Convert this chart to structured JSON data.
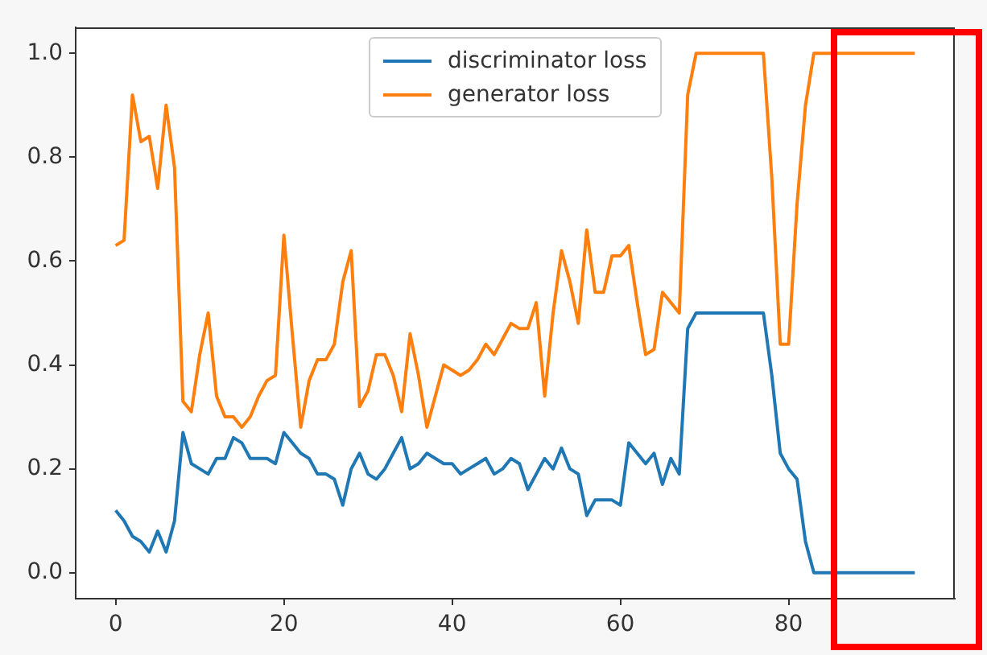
{
  "chart_data": {
    "type": "line",
    "x": [
      0,
      1,
      2,
      3,
      4,
      5,
      6,
      7,
      8,
      9,
      10,
      11,
      12,
      13,
      14,
      15,
      16,
      17,
      18,
      19,
      20,
      21,
      22,
      23,
      24,
      25,
      26,
      27,
      28,
      29,
      30,
      31,
      32,
      33,
      34,
      35,
      36,
      37,
      38,
      39,
      40,
      41,
      42,
      43,
      44,
      45,
      46,
      47,
      48,
      49,
      50,
      51,
      52,
      53,
      54,
      55,
      56,
      57,
      58,
      59,
      60,
      61,
      62,
      63,
      64,
      65,
      66,
      67,
      68,
      69,
      70,
      71,
      72,
      73,
      74,
      75,
      76,
      77,
      78,
      79,
      80,
      81,
      82,
      83,
      84,
      85,
      86,
      87,
      88,
      89,
      90,
      91,
      92,
      93,
      94,
      95
    ],
    "series": [
      {
        "name": "discriminator loss",
        "color": "#1f77b4",
        "values": [
          0.12,
          0.1,
          0.07,
          0.06,
          0.04,
          0.08,
          0.04,
          0.1,
          0.27,
          0.21,
          0.2,
          0.19,
          0.22,
          0.22,
          0.26,
          0.25,
          0.22,
          0.22,
          0.22,
          0.21,
          0.27,
          0.25,
          0.23,
          0.22,
          0.19,
          0.19,
          0.18,
          0.13,
          0.2,
          0.23,
          0.19,
          0.18,
          0.2,
          0.23,
          0.26,
          0.2,
          0.21,
          0.23,
          0.22,
          0.21,
          0.21,
          0.19,
          0.2,
          0.21,
          0.22,
          0.19,
          0.2,
          0.22,
          0.21,
          0.16,
          0.19,
          0.22,
          0.2,
          0.24,
          0.2,
          0.19,
          0.11,
          0.14,
          0.14,
          0.14,
          0.13,
          0.25,
          0.23,
          0.21,
          0.23,
          0.17,
          0.22,
          0.19,
          0.47,
          0.5,
          0.5,
          0.5,
          0.5,
          0.5,
          0.5,
          0.5,
          0.5,
          0.5,
          0.38,
          0.23,
          0.2,
          0.18,
          0.06,
          0.0,
          0.0,
          0.0,
          0.0,
          0.0,
          0.0,
          0.0,
          0.0,
          0.0,
          0.0,
          0.0,
          0.0,
          0.0
        ]
      },
      {
        "name": "generator loss",
        "color": "#ff7f0e",
        "values": [
          0.63,
          0.64,
          0.92,
          0.83,
          0.84,
          0.74,
          0.9,
          0.78,
          0.33,
          0.31,
          0.42,
          0.5,
          0.34,
          0.3,
          0.3,
          0.28,
          0.3,
          0.34,
          0.37,
          0.38,
          0.65,
          0.46,
          0.28,
          0.37,
          0.41,
          0.41,
          0.44,
          0.56,
          0.62,
          0.32,
          0.35,
          0.42,
          0.42,
          0.38,
          0.31,
          0.46,
          0.38,
          0.28,
          0.34,
          0.4,
          0.39,
          0.38,
          0.39,
          0.41,
          0.44,
          0.42,
          0.45,
          0.48,
          0.47,
          0.47,
          0.52,
          0.34,
          0.5,
          0.62,
          0.56,
          0.48,
          0.66,
          0.54,
          0.54,
          0.61,
          0.61,
          0.63,
          0.52,
          0.42,
          0.43,
          0.54,
          0.52,
          0.5,
          0.92,
          1.0,
          1.0,
          1.0,
          1.0,
          1.0,
          1.0,
          1.0,
          1.0,
          1.0,
          0.76,
          0.44,
          0.44,
          0.71,
          0.9,
          1.0,
          1.0,
          1.0,
          1.0,
          1.0,
          1.0,
          1.0,
          1.0,
          1.0,
          1.0,
          1.0,
          1.0,
          1.0
        ]
      }
    ],
    "xlim": [
      -4.75,
      99.75
    ],
    "xticks": [
      0,
      20,
      40,
      60,
      80
    ],
    "ylim": [
      -0.05,
      1.05
    ],
    "yticks": [
      {
        "value": 0,
        "label": "0.0"
      },
      {
        "value": 0.2,
        "label": "0.2"
      },
      {
        "value": 0.4,
        "label": "0.4"
      },
      {
        "value": 0.6,
        "label": "0.6"
      },
      {
        "value": 0.8,
        "label": "0.8"
      },
      {
        "value": 1,
        "label": "1.0"
      }
    ],
    "legend": "top",
    "marker": "none",
    "line_style": "solid"
  }
}
